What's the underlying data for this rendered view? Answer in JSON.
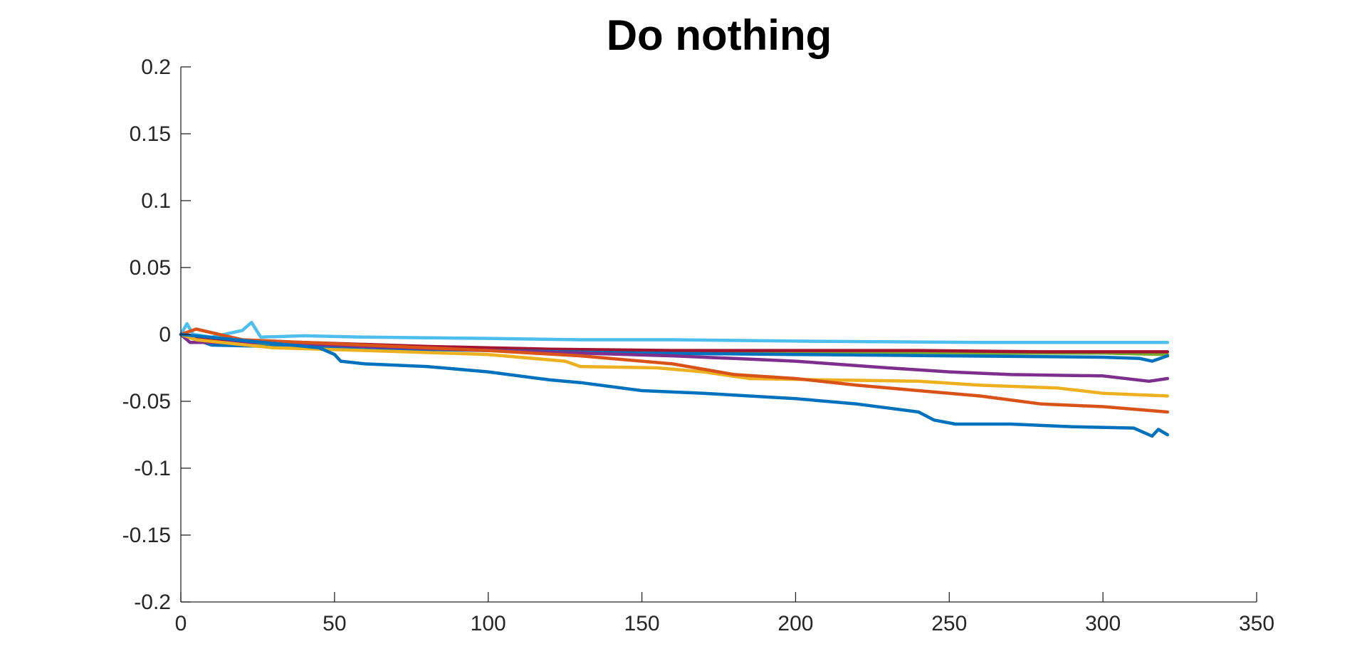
{
  "chart_data": {
    "type": "line",
    "title": "Do nothing",
    "xlabel": "",
    "ylabel": "",
    "xlim": [
      0,
      350
    ],
    "ylim": [
      -0.2,
      0.2
    ],
    "xticks": [
      0,
      50,
      100,
      150,
      200,
      250,
      300,
      350
    ],
    "yticks": [
      0.2,
      0.15,
      0.1,
      0.05,
      0,
      -0.05,
      -0.1,
      -0.15,
      -0.2
    ],
    "xtick_labels": [
      "0",
      "50",
      "100",
      "150",
      "200",
      "250",
      "300",
      "350"
    ],
    "ytick_labels": [
      "0.2",
      "0.15",
      "0.1",
      "0.05",
      "0",
      "-0.05",
      "-0.1",
      "-0.15",
      "-0.2"
    ],
    "grid": false,
    "legend": "none",
    "series": [
      {
        "color": "#4DBEEE",
        "x": [
          0,
          2,
          4,
          10,
          20,
          23,
          26,
          40,
          60,
          100,
          130,
          160,
          200,
          260,
          300,
          321
        ],
        "y": [
          0,
          0.008,
          0,
          -0.002,
          0.003,
          0.009,
          -0.002,
          -0.001,
          -0.002,
          -0.003,
          -0.004,
          -0.004,
          -0.005,
          -0.006,
          -0.006,
          -0.006
        ]
      },
      {
        "color": "#77AC30",
        "x": [
          0,
          20,
          50,
          100,
          150,
          200,
          250,
          300,
          321
        ],
        "y": [
          0,
          -0.006,
          -0.009,
          -0.011,
          -0.012,
          -0.013,
          -0.014,
          -0.014,
          -0.015
        ]
      },
      {
        "color": "#A2142F",
        "x": [
          0,
          10,
          40,
          80,
          120,
          160,
          200,
          240,
          280,
          321
        ],
        "y": [
          0,
          -0.004,
          -0.006,
          -0.009,
          -0.011,
          -0.012,
          -0.012,
          -0.012,
          -0.013,
          -0.013
        ]
      },
      {
        "color": "#0072BD",
        "x": [
          0,
          10,
          50,
          100,
          150,
          200,
          250,
          300,
          312,
          316,
          321
        ],
        "y": [
          0,
          -0.008,
          -0.01,
          -0.012,
          -0.014,
          -0.015,
          -0.016,
          -0.017,
          -0.018,
          -0.02,
          -0.016
        ]
      },
      {
        "color": "#7E2F8E",
        "x": [
          0,
          3,
          30,
          60,
          100,
          130,
          160,
          180,
          200,
          230,
          250,
          270,
          300,
          315,
          321
        ],
        "y": [
          0,
          -0.006,
          -0.006,
          -0.009,
          -0.012,
          -0.014,
          -0.016,
          -0.018,
          -0.02,
          -0.025,
          -0.028,
          -0.03,
          -0.031,
          -0.035,
          -0.033
        ]
      },
      {
        "color": "#EDB120",
        "x": [
          0,
          5,
          30,
          60,
          100,
          125,
          130,
          155,
          170,
          185,
          210,
          240,
          260,
          285,
          300,
          321
        ],
        "y": [
          0,
          -0.004,
          -0.01,
          -0.012,
          -0.015,
          -0.02,
          -0.024,
          -0.025,
          -0.028,
          -0.033,
          -0.034,
          -0.035,
          -0.038,
          -0.04,
          -0.044,
          -0.046
        ]
      },
      {
        "color": "#D95319",
        "x": [
          0,
          5,
          20,
          60,
          100,
          130,
          160,
          180,
          200,
          220,
          240,
          260,
          280,
          300,
          321
        ],
        "y": [
          0,
          0.004,
          -0.004,
          -0.008,
          -0.012,
          -0.016,
          -0.022,
          -0.03,
          -0.033,
          -0.038,
          -0.042,
          -0.046,
          -0.052,
          -0.054,
          -0.058
        ]
      },
      {
        "color": "#0072BD",
        "x": [
          0,
          45,
          50,
          52,
          60,
          80,
          100,
          120,
          130,
          150,
          170,
          200,
          220,
          240,
          245,
          252,
          270,
          290,
          310,
          316,
          318,
          321
        ],
        "y": [
          0,
          -0.01,
          -0.015,
          -0.02,
          -0.022,
          -0.024,
          -0.028,
          -0.034,
          -0.036,
          -0.042,
          -0.044,
          -0.048,
          -0.052,
          -0.058,
          -0.064,
          -0.067,
          -0.067,
          -0.069,
          -0.07,
          -0.076,
          -0.071,
          -0.075
        ]
      }
    ]
  }
}
